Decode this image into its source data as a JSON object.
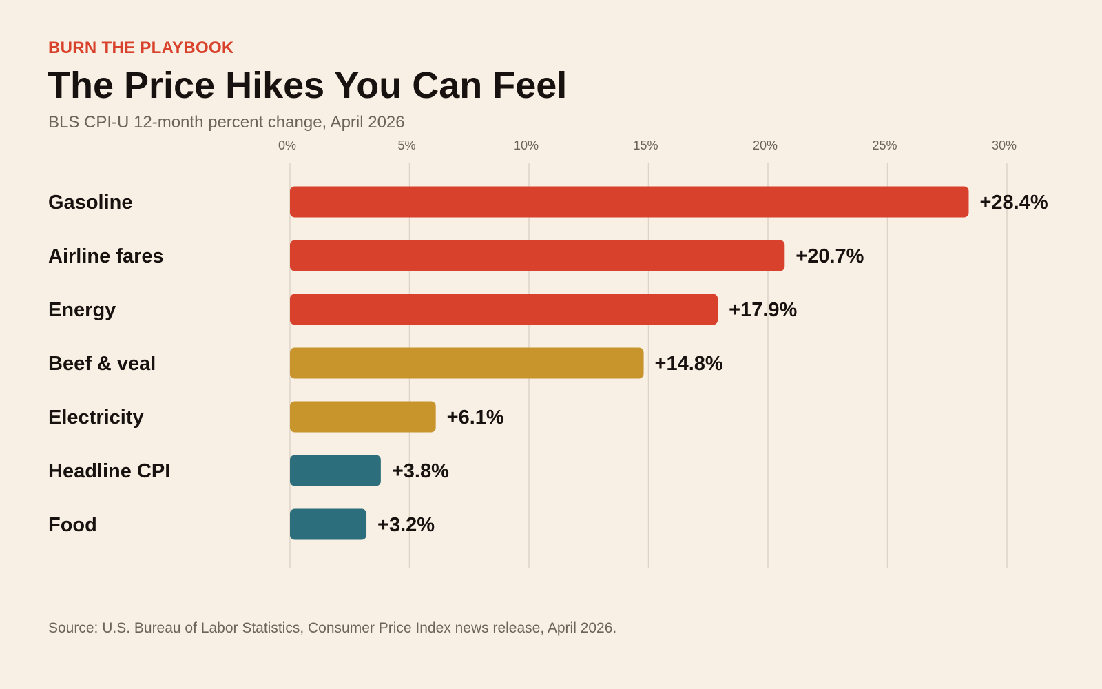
{
  "header": {
    "kicker": "BURN THE PLAYBOOK",
    "title": "The Price Hikes You Can Feel",
    "subtitle": "BLS CPI-U 12-month percent change, April 2026"
  },
  "footer": {
    "source": "Source: U.S. Bureau of Labor Statistics, Consumer Price Index news release, April 2026."
  },
  "colors": {
    "background": "#f8f0e4",
    "red": "#d8412b",
    "gold": "#c8952c",
    "teal": "#2c6e7b",
    "gridline": "#ddd3c6"
  },
  "chart_data": {
    "type": "bar",
    "orientation": "horizontal",
    "title": "The Price Hikes You Can Feel",
    "subtitle": "BLS CPI-U 12-month percent change, April 2026",
    "xlim": [
      0,
      30
    ],
    "xticks": [
      0,
      5,
      10,
      15,
      20,
      25,
      30
    ],
    "xtick_labels": [
      "0%",
      "5%",
      "10%",
      "15%",
      "20%",
      "25%",
      "30%"
    ],
    "grid": true,
    "categories": [
      "Gasoline",
      "Airline fares",
      "Energy",
      "Beef & veal",
      "Electricity",
      "Headline CPI",
      "Food"
    ],
    "values": [
      28.4,
      20.7,
      17.9,
      14.8,
      6.1,
      3.8,
      3.2
    ],
    "value_labels": [
      "+28.4%",
      "+20.7%",
      "+17.9%",
      "+14.8%",
      "+6.1%",
      "+3.8%",
      "+3.2%"
    ],
    "bar_colors": [
      "#d8412b",
      "#d8412b",
      "#d8412b",
      "#c8952c",
      "#c8952c",
      "#2c6e7b",
      "#2c6e7b"
    ]
  }
}
